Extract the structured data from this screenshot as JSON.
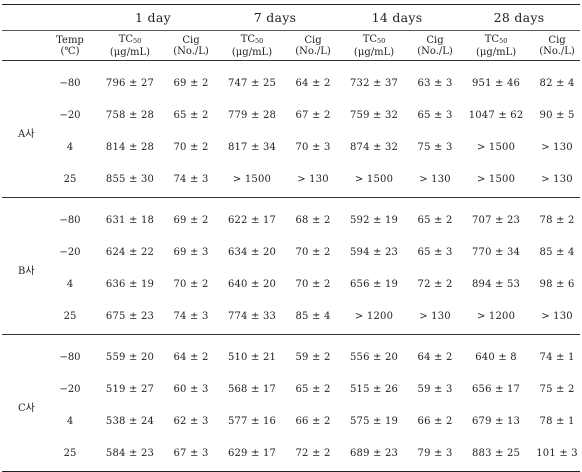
{
  "header": {
    "periods": [
      "1 day",
      "7 days",
      "14 days",
      "28 days"
    ],
    "temp_label_line1": "Temp",
    "temp_label_line2": "(℃)",
    "tc_main": "TC",
    "tc_sub": "50",
    "tc_unit": "(μg/mL)",
    "cig_main": "Cig",
    "cig_unit": "(No./L)"
  },
  "groups": [
    {
      "company": "A사",
      "rows": [
        {
          "temp": "−80",
          "cells": [
            "796 ± 27",
            "69 ± 2",
            "747 ± 25",
            "64 ± 2",
            "732 ± 37",
            "63 ± 3",
            "951 ± 46",
            "82 ± 4"
          ]
        },
        {
          "temp": "−20",
          "cells": [
            "758 ± 28",
            "65 ± 2",
            "779 ± 28",
            "67 ± 2",
            "759 ± 32",
            "65 ± 3",
            "1047 ± 62",
            "90 ± 5"
          ]
        },
        {
          "temp": "4",
          "cells": [
            "814 ± 28",
            "70 ± 2",
            "817 ± 34",
            "70 ± 3",
            "874 ± 32",
            "75 ± 3",
            "> 1500",
            "> 130"
          ]
        },
        {
          "temp": "25",
          "cells": [
            "855 ± 30",
            "74 ± 3",
            "> 1500",
            "> 130",
            "> 1500",
            "> 130",
            "> 1500",
            "> 130"
          ]
        }
      ]
    },
    {
      "company": "B사",
      "rows": [
        {
          "temp": "−80",
          "cells": [
            "631 ± 18",
            "69 ± 2",
            "622 ± 17",
            "68 ± 2",
            "592 ± 19",
            "65 ± 2",
            "707 ± 23",
            "78 ± 2"
          ]
        },
        {
          "temp": "−20",
          "cells": [
            "624 ± 22",
            "69 ± 3",
            "634 ± 20",
            "70 ± 2",
            "594 ± 23",
            "65 ± 3",
            "770 ± 34",
            "85 ± 4"
          ]
        },
        {
          "temp": "4",
          "cells": [
            "636 ± 19",
            "70 ± 2",
            "640 ± 20",
            "70 ± 2",
            "656 ± 19",
            "72 ± 2",
            "894 ± 53",
            "98 ± 6"
          ]
        },
        {
          "temp": "25",
          "cells": [
            "675 ± 23",
            "74 ± 3",
            "774 ± 33",
            "85 ± 4",
            "> 1200",
            "> 130",
            "> 1200",
            "> 130"
          ]
        }
      ]
    },
    {
      "company": "C사",
      "rows": [
        {
          "temp": "−80",
          "cells": [
            "559 ± 20",
            "64 ± 2",
            "510 ± 21",
            "59 ± 2",
            "556 ± 20",
            "64 ± 2",
            "640 ± 8",
            "74 ± 1"
          ]
        },
        {
          "temp": "−20",
          "cells": [
            "519 ± 27",
            "60 ± 3",
            "568 ± 17",
            "65 ± 2",
            "515 ± 26",
            "59 ± 3",
            "656 ± 17",
            "75 ± 2"
          ]
        },
        {
          "temp": "4",
          "cells": [
            "538 ± 24",
            "62 ± 3",
            "577 ± 16",
            "66 ± 2",
            "575 ± 19",
            "66 ± 2",
            "679 ± 13",
            "78 ± 1"
          ]
        },
        {
          "temp": "25",
          "cells": [
            "584 ± 23",
            "67 ± 3",
            "629 ± 17",
            "72 ± 2",
            "689 ± 23",
            "79 ± 3",
            "883 ± 25",
            "101 ± 3"
          ]
        }
      ]
    }
  ]
}
